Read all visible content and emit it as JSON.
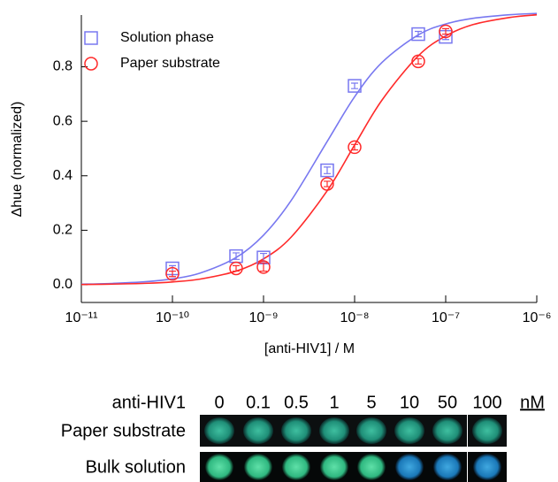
{
  "chart_data": {
    "type": "scatter",
    "xlabel": "[anti-HIV1] / M",
    "ylabel": "Δhue (normalized)",
    "xscale": "log",
    "xlim": [
      1e-11,
      1e-06
    ],
    "xticks": [
      {
        "value": 1e-11,
        "label": "10⁻¹¹"
      },
      {
        "value": 1e-10,
        "label": "10⁻¹⁰"
      },
      {
        "value": 1e-09,
        "label": "10⁻⁹"
      },
      {
        "value": 1e-08,
        "label": "10⁻⁸"
      },
      {
        "value": 1e-07,
        "label": "10⁻⁷"
      },
      {
        "value": 1e-06,
        "label": "10⁻⁶"
      }
    ],
    "ylim": [
      -0.065,
      0.99
    ],
    "yticks": [
      {
        "value": 0,
        "label": "0.0"
      },
      0.2,
      0.4,
      0.6,
      0.8
    ],
    "legend": "upper left",
    "series": [
      {
        "name": "Solution phase",
        "color": "#7878f0",
        "marker": "square",
        "x": [
          1e-10,
          5e-10,
          1e-09,
          5e-09,
          1e-08,
          5e-08,
          1e-07
        ],
        "values": [
          0.06,
          0.105,
          0.1,
          0.42,
          0.73,
          0.92,
          0.91
        ],
        "errors": [
          0.01,
          0.012,
          0.015,
          0.012,
          0.01,
          0.01,
          0.01
        ]
      },
      {
        "name": "Paper substrate",
        "color": "#ff2a2a",
        "marker": "circle",
        "x": [
          1e-10,
          5e-10,
          1e-09,
          5e-09,
          1e-08,
          5e-08,
          1e-07
        ],
        "values": [
          0.04,
          0.06,
          0.065,
          0.37,
          0.505,
          0.82,
          0.93
        ],
        "errors": [
          0.01,
          0.01,
          0.015,
          0.01,
          0.01,
          0.01,
          0.01
        ]
      }
    ],
    "curves": [
      {
        "color": "#7878f0",
        "x": [
          1e-11,
          2e-11,
          5e-11,
          1e-10,
          2e-10,
          5e-10,
          1e-09,
          2e-09,
          5e-09,
          1e-08,
          2e-08,
          5e-08,
          1e-07,
          2e-07,
          5e-07,
          1e-06
        ],
        "values": [
          0.0022,
          0.0044,
          0.011,
          0.0217,
          0.0426,
          0.1,
          0.182,
          0.308,
          0.526,
          0.69,
          0.816,
          0.917,
          0.957,
          0.978,
          0.991,
          0.996
        ]
      },
      {
        "color": "#ff2a2a",
        "x": [
          1e-11,
          2e-11,
          5e-11,
          1e-10,
          2e-10,
          5e-10,
          1e-09,
          2e-09,
          5e-09,
          1e-08,
          2e-08,
          5e-08,
          1e-07,
          2e-07,
          5e-07,
          1e-06
        ],
        "values": [
          0.001,
          0.0021,
          0.0052,
          0.0104,
          0.0206,
          0.05,
          0.095,
          0.174,
          0.345,
          0.513,
          0.678,
          0.84,
          0.913,
          0.955,
          0.981,
          0.991
        ]
      }
    ]
  },
  "strip": {
    "header": "anti-HIV1",
    "concentrations": [
      "0",
      "0.1",
      "0.5",
      "1",
      "5",
      "10",
      "50",
      "100"
    ],
    "unit": "nM",
    "rows": [
      "Paper substrate",
      "Bulk solution"
    ]
  }
}
